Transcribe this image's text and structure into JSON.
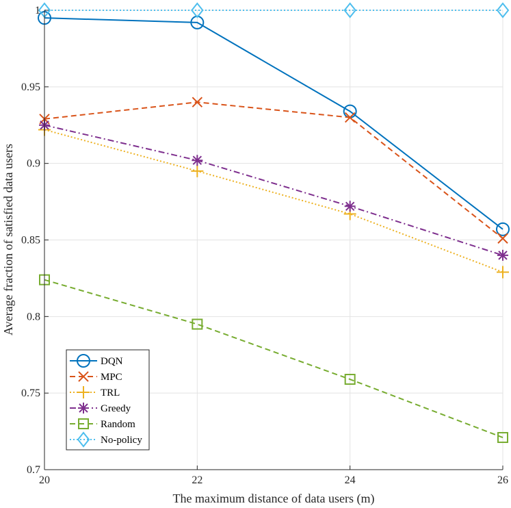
{
  "chart_data": {
    "type": "line",
    "xlabel": "The maximum distance of data users (m)",
    "ylabel": "Average fraction of satisfied data users",
    "x": [
      20,
      22,
      24,
      26
    ],
    "xlim": [
      20,
      26
    ],
    "ylim": [
      0.7,
      1.0
    ],
    "xticks": [
      "20",
      "22",
      "24",
      "26"
    ],
    "yticks": [
      "0.7",
      "0.75",
      "0.8",
      "0.85",
      "0.9",
      "0.95",
      "1"
    ],
    "grid": true,
    "legend_position": "bottom-left",
    "series": [
      {
        "name": "DQN",
        "values": [
          0.995,
          0.992,
          0.934,
          0.857
        ],
        "color": "#0072BD",
        "line": "solid",
        "marker": "circle"
      },
      {
        "name": "MPC",
        "values": [
          0.929,
          0.94,
          0.93,
          0.851
        ],
        "color": "#D95319",
        "line": "dashed",
        "marker": "x"
      },
      {
        "name": "TRL",
        "values": [
          0.922,
          0.895,
          0.867,
          0.829
        ],
        "color": "#EDB120",
        "line": "dotted",
        "marker": "plus"
      },
      {
        "name": "Greedy",
        "values": [
          0.925,
          0.902,
          0.872,
          0.84
        ],
        "color": "#7E2F8E",
        "line": "dashdot",
        "marker": "asterisk"
      },
      {
        "name": "Random",
        "values": [
          0.824,
          0.795,
          0.759,
          0.721
        ],
        "color": "#77AC30",
        "line": "dashed",
        "marker": "square"
      },
      {
        "name": "No-policy",
        "values": [
          1.0,
          1.0,
          1.0,
          1.0
        ],
        "color": "#4DBEEE",
        "line": "dotted",
        "marker": "diamond"
      }
    ]
  }
}
